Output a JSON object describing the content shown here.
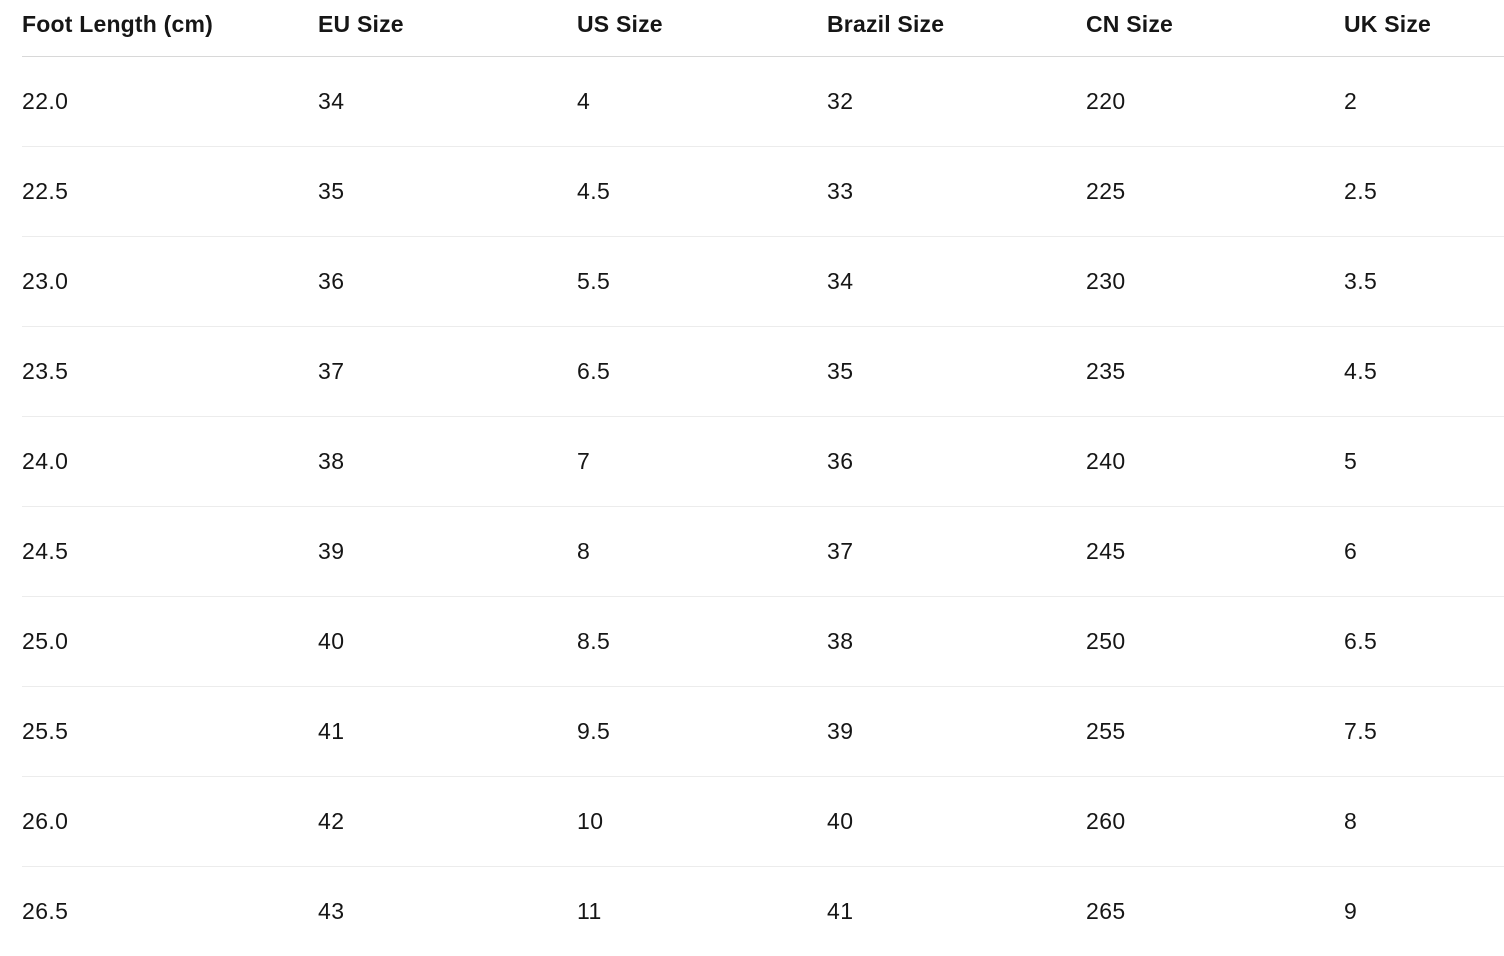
{
  "table": {
    "name": "shoe-size-conversion",
    "columns": [
      "Foot Length (cm)",
      "EU Size",
      "US Size",
      "Brazil Size",
      "CN Size",
      "UK Size"
    ],
    "rows": [
      [
        "22.0",
        "34",
        "4",
        "32",
        "220",
        "2"
      ],
      [
        "22.5",
        "35",
        "4.5",
        "33",
        "225",
        "2.5"
      ],
      [
        "23.0",
        "36",
        "5.5",
        "34",
        "230",
        "3.5"
      ],
      [
        "23.5",
        "37",
        "6.5",
        "35",
        "235",
        "4.5"
      ],
      [
        "24.0",
        "38",
        "7",
        "36",
        "240",
        "5"
      ],
      [
        "24.5",
        "39",
        "8",
        "37",
        "245",
        "6"
      ],
      [
        "25.0",
        "40",
        "8.5",
        "38",
        "250",
        "6.5"
      ],
      [
        "25.5",
        "41",
        "9.5",
        "39",
        "255",
        "7.5"
      ],
      [
        "26.0",
        "42",
        "10",
        "40",
        "260",
        "8"
      ],
      [
        "26.5",
        "43",
        "11",
        "41",
        "265",
        "9"
      ]
    ]
  },
  "colors": {
    "background": "#ffffff",
    "text": "#161616",
    "header_border": "#d8d8d8",
    "row_border": "#ececec"
  }
}
